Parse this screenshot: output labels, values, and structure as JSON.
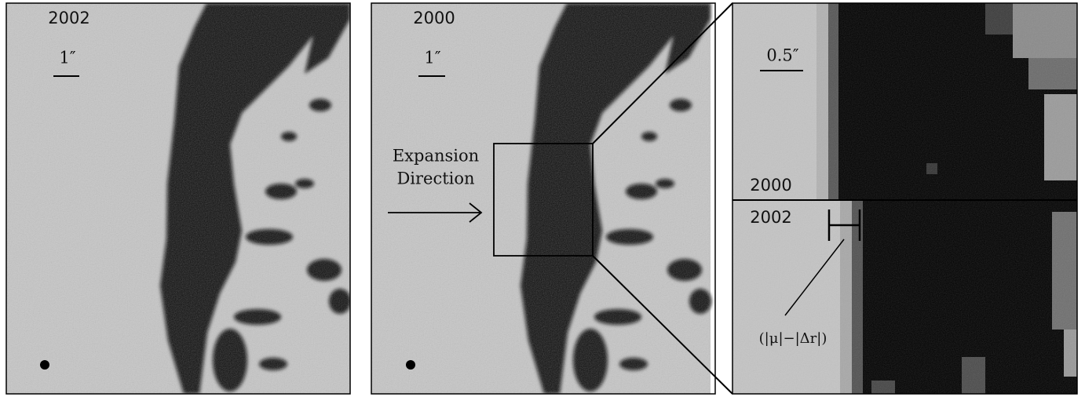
{
  "panels": [
    {
      "year": "2002",
      "scale": "1″"
    },
    {
      "year": "2000",
      "scale": "1″",
      "annotation": [
        "Expansion",
        "Direction"
      ]
    },
    {
      "scale": "0.5″",
      "top_year": "2000",
      "bottom_year": "2002",
      "label": "(|μ|−|Δr|)"
    }
  ]
}
